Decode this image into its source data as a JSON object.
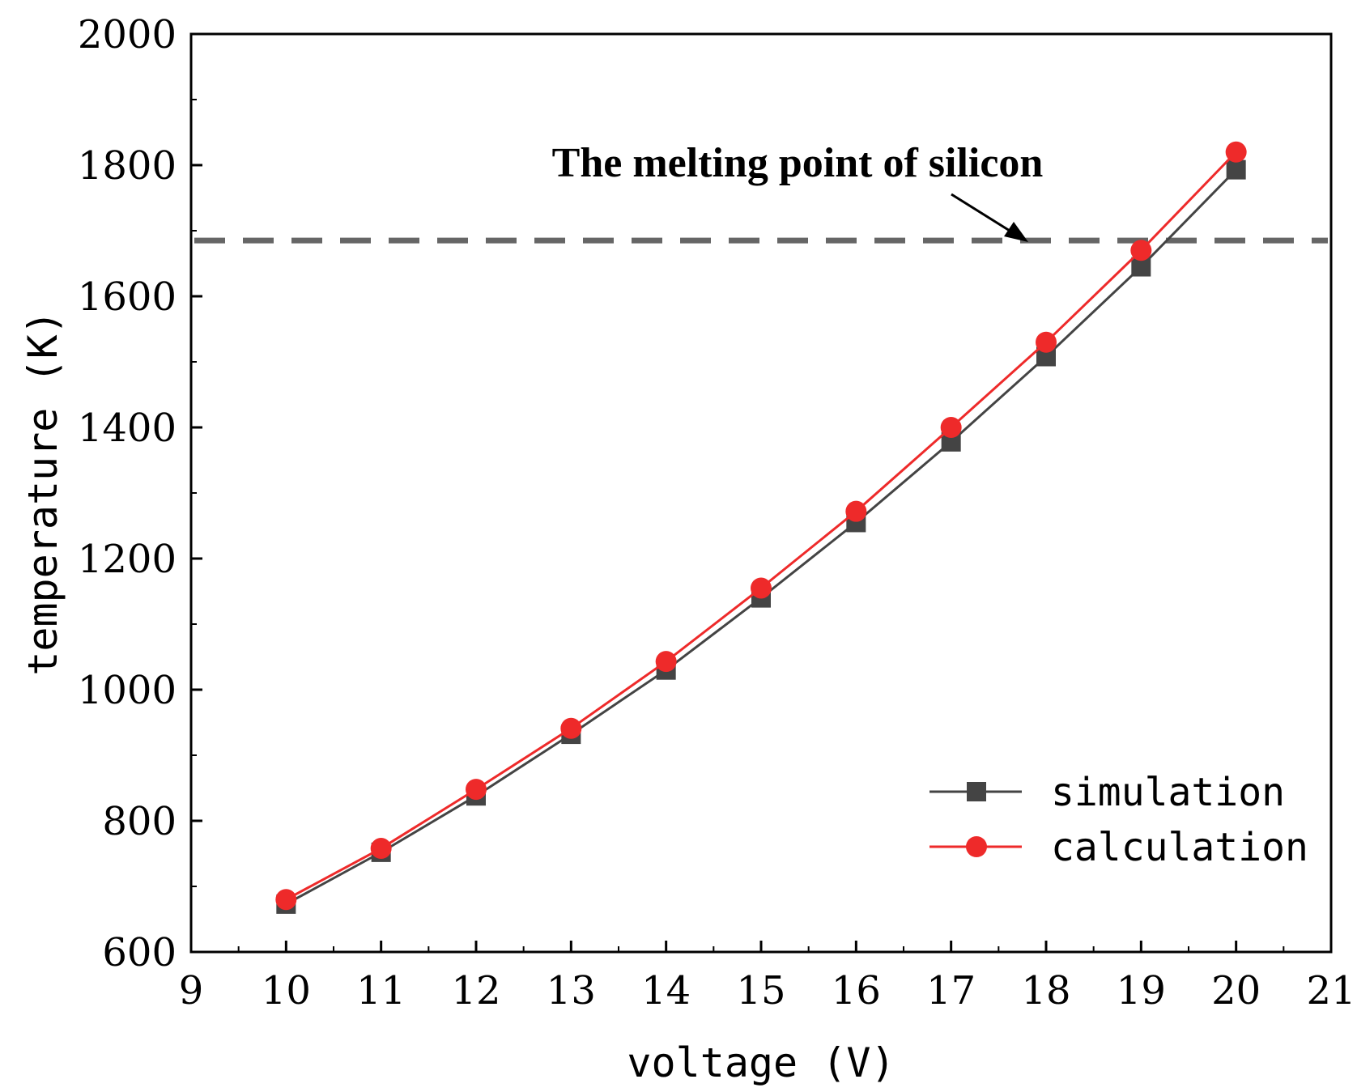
{
  "chart_data": {
    "type": "line",
    "title": "",
    "xlabel": "voltage (V)",
    "ylabel": "temperature (K)",
    "xlim": [
      9,
      21
    ],
    "ylim": [
      600,
      2000
    ],
    "x_ticks": [
      9,
      10,
      11,
      12,
      13,
      14,
      15,
      16,
      17,
      18,
      19,
      20,
      21
    ],
    "y_ticks": [
      600,
      800,
      1000,
      1200,
      1400,
      1600,
      1800,
      2000
    ],
    "x": [
      10,
      11,
      12,
      13,
      14,
      15,
      16,
      17,
      18,
      19,
      20
    ],
    "series": [
      {
        "name": "simulation",
        "marker": "square",
        "color": "#444444",
        "values": [
          673,
          752,
          838,
          932,
          1030,
          1140,
          1255,
          1378,
          1508,
          1645,
          1793
        ]
      },
      {
        "name": "calculation",
        "marker": "circle",
        "color": "#ee2a2a",
        "values": [
          680,
          758,
          848,
          941,
          1043,
          1155,
          1272,
          1400,
          1530,
          1670,
          1820
        ]
      }
    ],
    "reference_line": {
      "y": 1685,
      "style": "dashed",
      "color": "#666666",
      "label": "The melting point of silicon"
    },
    "legend_position": "bottom-right",
    "grid": false
  }
}
